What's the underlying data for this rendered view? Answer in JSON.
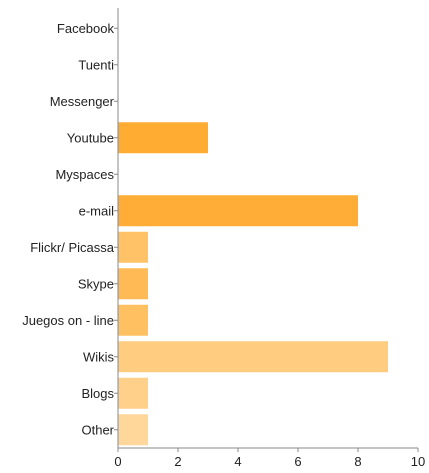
{
  "chart_data": {
    "type": "bar",
    "orientation": "horizontal",
    "title": "",
    "xlabel": "",
    "ylabel": "",
    "categories": [
      "Facebook",
      "Tuenti",
      "Messenger",
      "Youtube",
      "Myspaces",
      "e-mail",
      "Flickr/ Picassa",
      "Skype",
      "Juegos on - line",
      "Wikis",
      "Blogs",
      "Other"
    ],
    "values": [
      0,
      0,
      0,
      3,
      0,
      8,
      1,
      1,
      1,
      9,
      1,
      1
    ],
    "bar_colors": [
      "#FFA624",
      "#FFA624",
      "#FFA624",
      "#FFAC33",
      "#FFA624",
      "#FFAD36",
      "#FFC266",
      "#FFBA55",
      "#FFC061",
      "#FFCC80",
      "#FFD08A",
      "#FFD79B"
    ],
    "xlim": [
      0,
      10
    ],
    "xticks": [
      "0",
      "2",
      "4",
      "6",
      "8",
      "10"
    ],
    "grid": false,
    "legend": "none",
    "axis_color": "#888888"
  }
}
